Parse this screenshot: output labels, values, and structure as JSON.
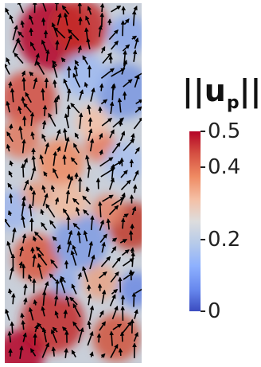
{
  "legend": {
    "title_main": "||u",
    "title_sub": "p",
    "title_end": "||",
    "ticks": [
      {
        "label": "0.5",
        "value": 0.5
      },
      {
        "label": "0.4",
        "value": 0.4
      },
      {
        "label": "0.2",
        "value": 0.2
      },
      {
        "label": "0",
        "value": 0.0
      }
    ],
    "range": [
      0,
      0.5
    ]
  },
  "colors": {
    "high": "#b40426",
    "mid": "#dddddd",
    "low": "#3b4cc0"
  }
}
